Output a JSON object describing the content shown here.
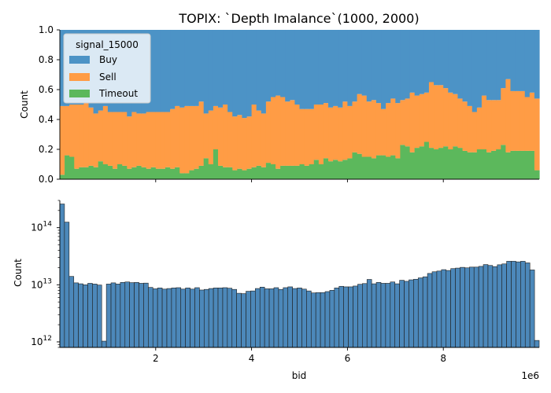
{
  "colors": {
    "buy": "#4c93c6",
    "sell": "#ff9c45",
    "timeout": "#5cb85c",
    "hist": "#4c88ba",
    "edge": "#1f1f1f"
  },
  "chart_data": [
    {
      "type": "area",
      "title": "TOPIX: `Depth Imalance`(1000, 2000)",
      "xlabel": "",
      "ylabel": "Count",
      "xlim": [
        0,
        10000000
      ],
      "ylim": [
        0,
        1.0
      ],
      "yticks": [
        "0.0",
        "0.2",
        "0.4",
        "0.6",
        "0.8",
        "1.0"
      ],
      "legend": {
        "title": "signal_15000",
        "placement": "top-left",
        "entries": [
          "Buy",
          "Sell",
          "Timeout"
        ]
      },
      "bin_edges": [
        0,
        10000000
      ],
      "series": [
        {
          "name": "Timeout",
          "values": [
            0.03,
            0.16,
            0.15,
            0.07,
            0.08,
            0.08,
            0.09,
            0.08,
            0.12,
            0.1,
            0.09,
            0.07,
            0.1,
            0.09,
            0.07,
            0.08,
            0.09,
            0.08,
            0.07,
            0.08,
            0.07,
            0.07,
            0.08,
            0.07,
            0.08,
            0.04,
            0.04,
            0.06,
            0.07,
            0.09,
            0.14,
            0.1,
            0.2,
            0.09,
            0.08,
            0.08,
            0.06,
            0.07,
            0.06,
            0.07,
            0.08,
            0.09,
            0.08,
            0.11,
            0.1,
            0.07,
            0.09,
            0.09,
            0.09,
            0.09,
            0.1,
            0.09,
            0.1,
            0.13,
            0.1,
            0.14,
            0.12,
            0.13,
            0.12,
            0.13,
            0.14,
            0.18,
            0.17,
            0.15,
            0.15,
            0.14,
            0.16,
            0.16,
            0.15,
            0.16,
            0.14,
            0.23,
            0.22,
            0.18,
            0.21,
            0.22,
            0.25,
            0.21,
            0.2,
            0.21,
            0.22,
            0.2,
            0.22,
            0.21,
            0.19,
            0.18,
            0.18,
            0.2,
            0.2,
            0.18,
            0.19,
            0.2,
            0.23,
            0.18,
            0.19,
            0.19,
            0.19,
            0.19,
            0.19,
            0.06
          ]
        },
        {
          "name": "Sell",
          "values": [
            0.46,
            0.33,
            0.35,
            0.43,
            0.42,
            0.43,
            0.39,
            0.36,
            0.34,
            0.39,
            0.36,
            0.38,
            0.35,
            0.36,
            0.35,
            0.37,
            0.35,
            0.36,
            0.38,
            0.37,
            0.38,
            0.38,
            0.37,
            0.4,
            0.41,
            0.44,
            0.45,
            0.43,
            0.42,
            0.43,
            0.3,
            0.36,
            0.29,
            0.39,
            0.42,
            0.37,
            0.36,
            0.36,
            0.35,
            0.35,
            0.42,
            0.37,
            0.36,
            0.41,
            0.45,
            0.49,
            0.46,
            0.43,
            0.44,
            0.41,
            0.37,
            0.38,
            0.37,
            0.37,
            0.4,
            0.37,
            0.36,
            0.36,
            0.36,
            0.39,
            0.35,
            0.34,
            0.4,
            0.41,
            0.37,
            0.39,
            0.35,
            0.31,
            0.36,
            0.38,
            0.37,
            0.3,
            0.32,
            0.4,
            0.35,
            0.35,
            0.33,
            0.44,
            0.43,
            0.42,
            0.39,
            0.38,
            0.35,
            0.33,
            0.33,
            0.31,
            0.27,
            0.28,
            0.36,
            0.35,
            0.34,
            0.33,
            0.38,
            0.49,
            0.4,
            0.4,
            0.4,
            0.36,
            0.39,
            0.48
          ]
        },
        {
          "name": "Buy",
          "values": [
            0.51,
            0.51,
            0.5,
            0.5,
            0.5,
            0.49,
            0.52,
            0.56,
            0.54,
            0.51,
            0.55,
            0.55,
            0.55,
            0.55,
            0.58,
            0.55,
            0.56,
            0.56,
            0.55,
            0.55,
            0.55,
            0.55,
            0.55,
            0.53,
            0.51,
            0.52,
            0.51,
            0.51,
            0.51,
            0.48,
            0.56,
            0.54,
            0.51,
            0.52,
            0.5,
            0.55,
            0.58,
            0.57,
            0.59,
            0.58,
            0.5,
            0.54,
            0.56,
            0.48,
            0.45,
            0.44,
            0.45,
            0.48,
            0.47,
            0.5,
            0.53,
            0.53,
            0.53,
            0.5,
            0.5,
            0.49,
            0.52,
            0.51,
            0.52,
            0.48,
            0.51,
            0.48,
            0.43,
            0.44,
            0.48,
            0.47,
            0.49,
            0.53,
            0.49,
            0.46,
            0.49,
            0.47,
            0.46,
            0.42,
            0.44,
            0.43,
            0.42,
            0.35,
            0.37,
            0.37,
            0.39,
            0.42,
            0.43,
            0.46,
            0.48,
            0.51,
            0.55,
            0.52,
            0.44,
            0.47,
            0.47,
            0.47,
            0.39,
            0.33,
            0.41,
            0.41,
            0.41,
            0.45,
            0.42,
            0.46
          ]
        }
      ]
    },
    {
      "type": "bar",
      "title": "",
      "xlabel": "bid",
      "ylabel": "Count",
      "x_offset_label": "1e6",
      "xlim": [
        0,
        10000000
      ],
      "xticks": [
        "2",
        "4",
        "6",
        "8"
      ],
      "xtick_values": [
        2000000,
        4000000,
        6000000,
        8000000
      ],
      "yscale": "log",
      "ylim": [
        800000000000,
        300000000000000
      ],
      "yticks": [
        {
          "base": "10",
          "exp": "12",
          "value": 1000000000000
        },
        {
          "base": "10",
          "exp": "13",
          "value": 10000000000000
        },
        {
          "base": "10",
          "exp": "14",
          "value": 100000000000000
        }
      ],
      "values": [
        260000000000000.0,
        125000000000000.0,
        14000000000000.0,
        10800000000000.0,
        10400000000000.0,
        10000000000000.0,
        10600000000000.0,
        10300000000000.0,
        9900000000000.0,
        1030000000000.0,
        10300000000000.0,
        10800000000000.0,
        10300000000000.0,
        11000000000000.0,
        11200000000000.0,
        10900000000000.0,
        11000000000000.0,
        10600000000000.0,
        10700000000000.0,
        9000000000000.0,
        8500000000000.0,
        8800000000000.0,
        8400000000000.0,
        8600000000000.0,
        8800000000000.0,
        8900000000000.0,
        8400000000000.0,
        8800000000000.0,
        8400000000000.0,
        8900000000000.0,
        8100000000000.0,
        8300000000000.0,
        8600000000000.0,
        8800000000000.0,
        8800000000000.0,
        8900000000000.0,
        8700000000000.0,
        8300000000000.0,
        7100000000000.0,
        7000000000000.0,
        7700000000000.0,
        7800000000000.0,
        8600000000000.0,
        9100000000000.0,
        8500000000000.0,
        8500000000000.0,
        8900000000000.0,
        8300000000000.0,
        8900000000000.0,
        9200000000000.0,
        8600000000000.0,
        8800000000000.0,
        8400000000000.0,
        7800000000000.0,
        7200000000000.0,
        7300000000000.0,
        7300000000000.0,
        7600000000000.0,
        8000000000000.0,
        8800000000000.0,
        9400000000000.0,
        9200000000000.0,
        9200000000000.0,
        9500000000000.0,
        10200000000000.0,
        10500000000000.0,
        12400000000000.0,
        10400000000000.0,
        11000000000000.0,
        10600000000000.0,
        10600000000000.0,
        11200000000000.0,
        10400000000000.0,
        12000000000000.0,
        11500000000000.0,
        12200000000000.0,
        12500000000000.0,
        13200000000000.0,
        13800000000000.0,
        15800000000000.0,
        16900000000000.0,
        17400000000000.0,
        18400000000000.0,
        17800000000000.0,
        19200000000000.0,
        19600000000000.0,
        20200000000000.0,
        19800000000000.0,
        20400000000000.0,
        20400000000000.0,
        21000000000000.0,
        22600000000000.0,
        21800000000000.0,
        20800000000000.0,
        22400000000000.0,
        23200000000000.0,
        25800000000000.0,
        25800000000000.0,
        25200000000000.0,
        25800000000000.0,
        24200000000000.0,
        18200000000000.0,
        1060000000000.0
      ]
    }
  ]
}
